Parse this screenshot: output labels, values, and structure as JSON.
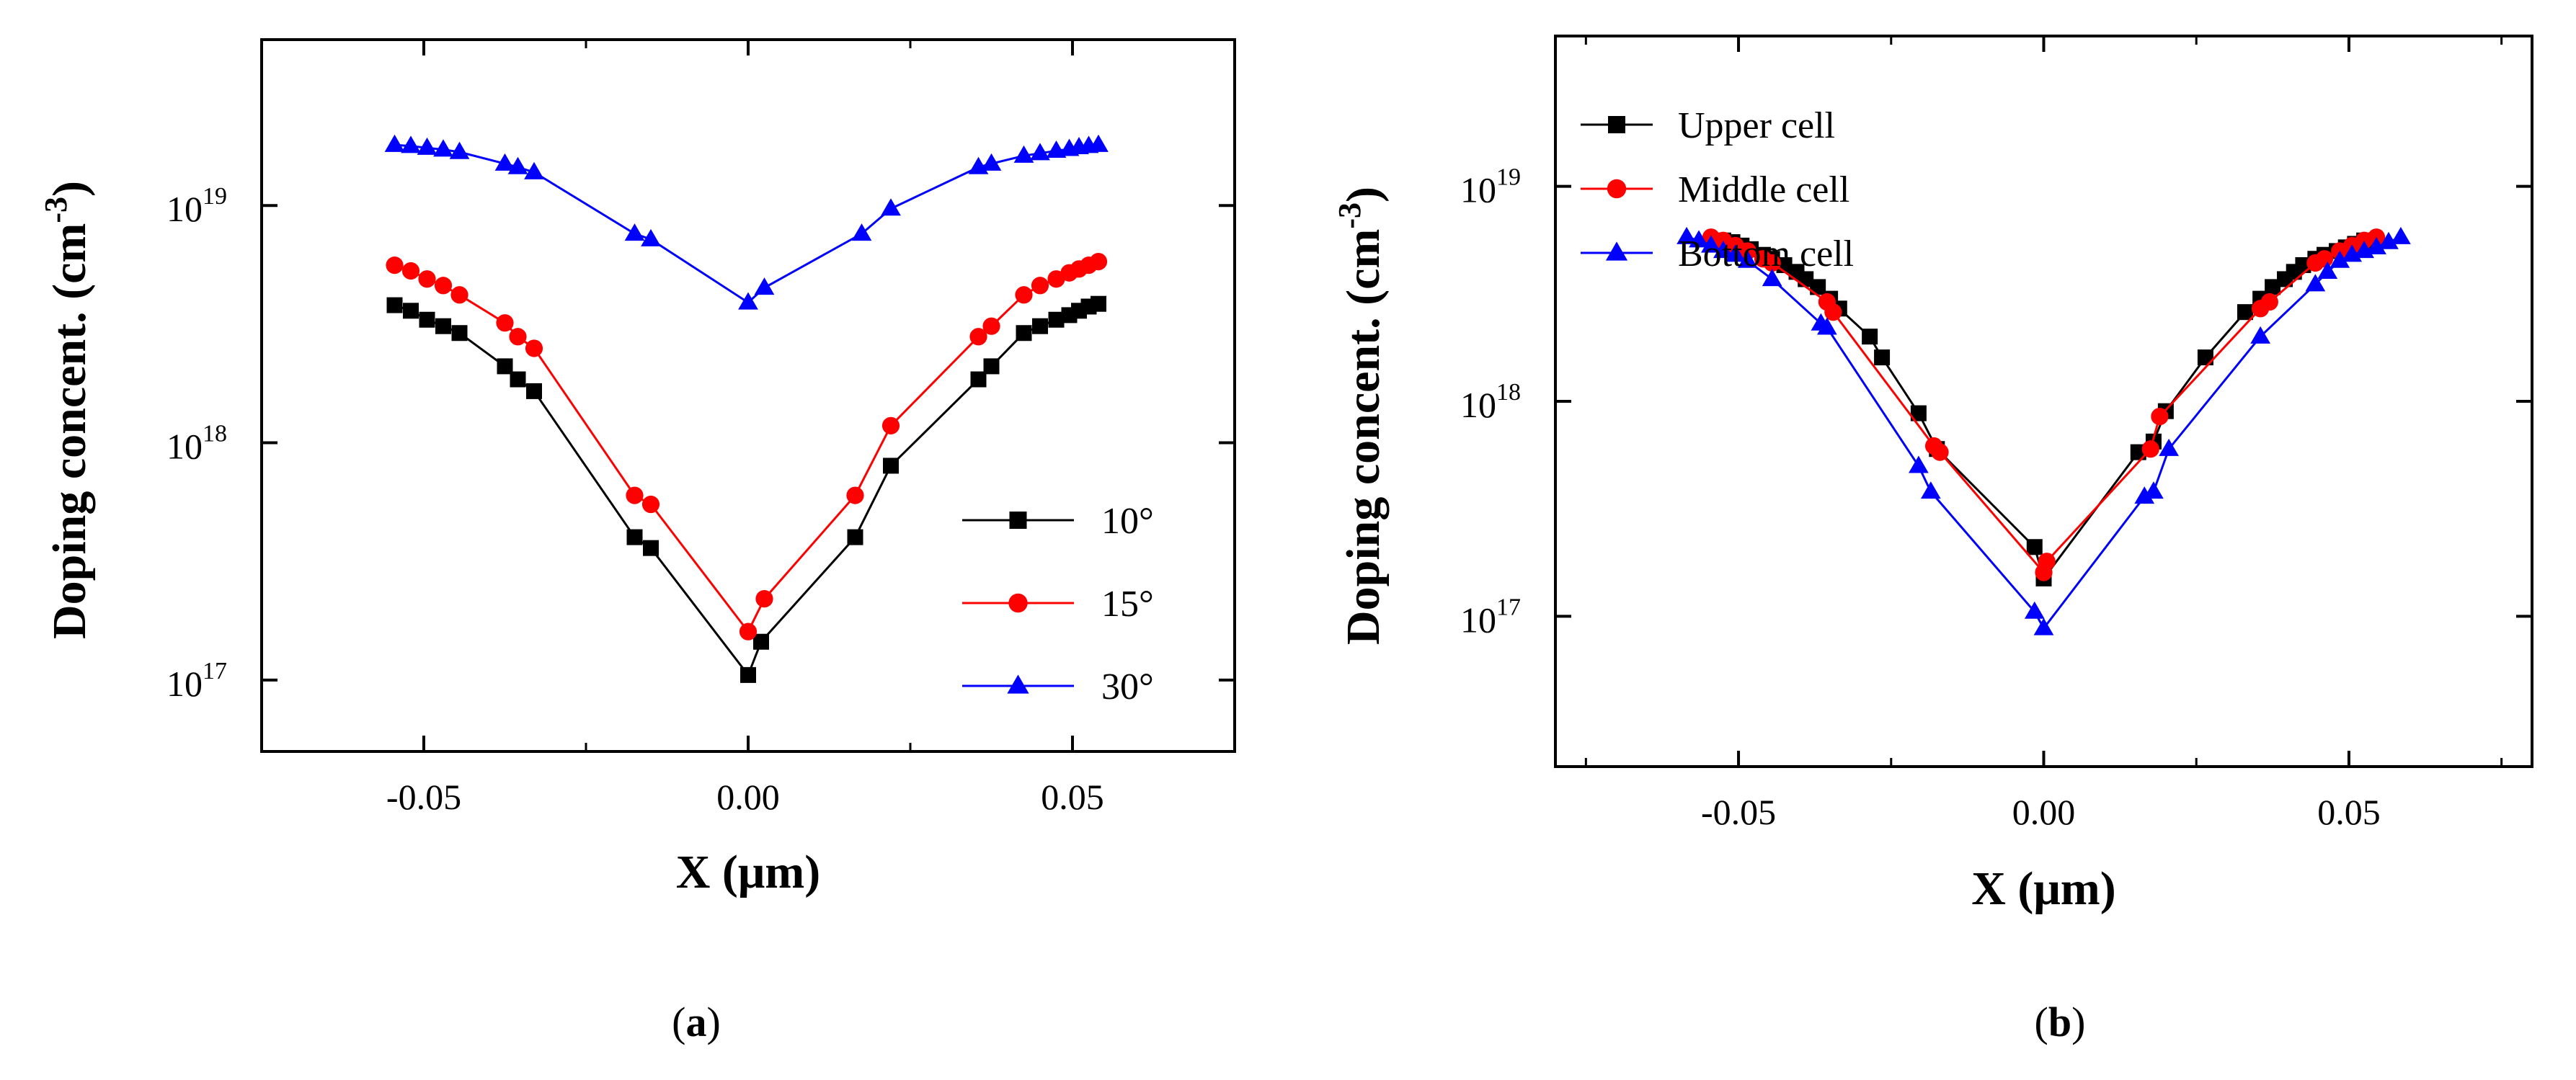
{
  "chart_data": [
    {
      "type": "line",
      "panel_label": [
        "(",
        "a",
        ")"
      ],
      "xlabel": "X (μm)",
      "ylabel": {
        "main": "Doping concent. (cm",
        "sup": "-3",
        "end": ")"
      },
      "xlim": [
        -0.075,
        0.075
      ],
      "ylim": [
        5e+16,
        5e+19
      ],
      "y_scale": "log",
      "x_ticks": [
        {
          "value": -0.05,
          "label": "-0.05"
        },
        {
          "value": 0,
          "label": "0.00"
        },
        {
          "value": 0.05,
          "label": "0.05"
        }
      ],
      "y_ticks": [
        {
          "value": 1e+17,
          "base": "10",
          "exp": "17"
        },
        {
          "value": 1e+18,
          "base": "10",
          "exp": "18"
        },
        {
          "value": 1e+19,
          "base": "10",
          "exp": "19"
        }
      ],
      "legend_position": "lower-right",
      "series": [
        {
          "name": "10°",
          "color": "#000000",
          "marker": "square",
          "x": [
            -0.0545,
            -0.052,
            -0.0495,
            -0.047,
            -0.0445,
            -0.0375,
            -0.0355,
            -0.033,
            -0.0175,
            -0.015,
            0,
            0.002,
            0.0165,
            0.022,
            0.0355,
            0.0375,
            0.0425,
            0.045,
            0.0475,
            0.0495,
            0.051,
            0.0525,
            0.054
          ],
          "y": [
            3.8e+18,
            3.6e+18,
            3.3e+18,
            3.1e+18,
            2.9e+18,
            2.1e+18,
            1.85e+18,
            1.65e+18,
            4e+17,
            3.6e+17,
            1.05e+17,
            1.45e+17,
            4e+17,
            8e+17,
            1.85e+18,
            2.1e+18,
            2.9e+18,
            3.1e+18,
            3.3e+18,
            3.45e+18,
            3.6e+18,
            3.75e+18,
            3.85e+18
          ]
        },
        {
          "name": "15°",
          "color": "#ff0000",
          "marker": "circle",
          "x": [
            -0.0545,
            -0.052,
            -0.0495,
            -0.047,
            -0.0445,
            -0.0375,
            -0.0355,
            -0.033,
            -0.0175,
            -0.015,
            0,
            0.0025,
            0.0165,
            0.022,
            0.0355,
            0.0375,
            0.0425,
            0.045,
            0.0475,
            0.0495,
            0.051,
            0.0525,
            0.054
          ],
          "y": [
            5.6e+18,
            5.3e+18,
            4.9e+18,
            4.6e+18,
            4.2e+18,
            3.2e+18,
            2.8e+18,
            2.5e+18,
            6e+17,
            5.5e+17,
            1.6e+17,
            2.2e+17,
            6e+17,
            1.18e+18,
            2.8e+18,
            3.1e+18,
            4.2e+18,
            4.6e+18,
            4.9e+18,
            5.2e+18,
            5.4e+18,
            5.6e+18,
            5.8e+18
          ]
        },
        {
          "name": "30°",
          "color": "#0000ff",
          "marker": "triangle",
          "x": [
            -0.0545,
            -0.052,
            -0.0495,
            -0.047,
            -0.0445,
            -0.0375,
            -0.0355,
            -0.033,
            -0.0175,
            -0.015,
            0,
            0.0025,
            0.0175,
            0.022,
            0.0355,
            0.0375,
            0.0425,
            0.045,
            0.0475,
            0.0495,
            0.051,
            0.0525,
            0.054
          ],
          "y": [
            1.8e+19,
            1.78e+19,
            1.75e+19,
            1.72e+19,
            1.68e+19,
            1.5e+19,
            1.45e+19,
            1.38e+19,
            7.6e+18,
            7.2e+18,
            3.9e+18,
            4.5e+18,
            7.6e+18,
            9.7e+18,
            1.45e+19,
            1.5e+19,
            1.62e+19,
            1.66e+19,
            1.7e+19,
            1.73e+19,
            1.76e+19,
            1.78e+19,
            1.8e+19
          ]
        }
      ]
    },
    {
      "type": "line",
      "panel_label": [
        "(",
        "b",
        ")"
      ],
      "xlabel": "X (μm)",
      "ylabel": {
        "main": "Doping concent. (cm",
        "sup": "-3",
        "end": ")"
      },
      "xlim": [
        -0.08,
        0.08
      ],
      "ylim": [
        2e+16,
        5e+19
      ],
      "y_scale": "log",
      "x_ticks": [
        {
          "value": -0.05,
          "label": "-0.05"
        },
        {
          "value": 0,
          "label": "0.00"
        },
        {
          "value": 0.05,
          "label": "0.05"
        }
      ],
      "y_ticks": [
        {
          "value": 1e+17,
          "base": "10",
          "exp": "17"
        },
        {
          "value": 1e+18,
          "base": "10",
          "exp": "18"
        },
        {
          "value": 1e+19,
          "base": "10",
          "exp": "19"
        }
      ],
      "legend_position": "top-left",
      "series": [
        {
          "name": "Upper cell",
          "color": "#000000",
          "marker": "square",
          "x": [
            -0.0525,
            -0.051,
            -0.0495,
            -0.048,
            -0.046,
            -0.0445,
            -0.0425,
            -0.0405,
            -0.039,
            -0.037,
            -0.035,
            -0.0335,
            -0.0285,
            -0.0265,
            -0.0205,
            -0.0175,
            -0.0015,
            0,
            0.0155,
            0.018,
            0.02,
            0.0265,
            0.033,
            0.0355,
            0.0375,
            0.0395,
            0.041,
            0.0425,
            0.0445,
            0.046,
            0.048,
            0.0495,
            0.051,
            0.0525
          ],
          "y": [
            5.6e+18,
            5.5e+18,
            5.3e+18,
            5.1e+18,
            4.8e+18,
            4.6e+18,
            4.3e+18,
            4e+18,
            3.7e+18,
            3.4e+18,
            3e+18,
            2.7e+18,
            2e+18,
            1.6e+18,
            8.8e+17,
            6e+17,
            2.1e+17,
            1.5e+17,
            5.8e+17,
            6.5e+17,
            9e+17,
            1.6e+18,
            2.6e+18,
            3e+18,
            3.4e+18,
            3.7e+18,
            4e+18,
            4.3e+18,
            4.6e+18,
            4.8e+18,
            5e+18,
            5.2e+18,
            5.4e+18,
            5.6e+18
          ]
        },
        {
          "name": "Middle cell",
          "color": "#ff0000",
          "marker": "circle",
          "x": [
            -0.0545,
            -0.0525,
            -0.0505,
            -0.0485,
            -0.046,
            -0.0445,
            -0.0355,
            -0.0345,
            -0.018,
            -0.017,
            0,
            0.0005,
            0.0175,
            0.019,
            0.0355,
            0.037,
            0.0445,
            0.046,
            0.0485,
            0.0505,
            0.0525,
            0.0545
          ],
          "y": [
            5.8e+18,
            5.6e+18,
            5.3e+18,
            5e+18,
            4.6e+18,
            4.4e+18,
            2.9e+18,
            2.6e+18,
            6.2e+17,
            5.8e+17,
            1.6e+17,
            1.8e+17,
            6e+17,
            8.5e+17,
            2.7e+18,
            2.9e+18,
            4.4e+18,
            4.6e+18,
            5e+18,
            5.3e+18,
            5.6e+18,
            5.8e+18
          ]
        },
        {
          "name": "Bottom cell",
          "color": "#0000ff",
          "marker": "triangle",
          "x": [
            -0.0585,
            -0.0565,
            -0.0545,
            -0.0525,
            -0.0505,
            -0.0485,
            -0.0445,
            -0.0365,
            -0.0355,
            -0.0205,
            -0.0185,
            -0.0015,
            0,
            0.0165,
            0.018,
            0.0205,
            0.0355,
            0.0445,
            0.0465,
            0.0485,
            0.0505,
            0.0525,
            0.0545,
            0.0565,
            0.0585
          ],
          "y": [
            5.8e+18,
            5.6e+18,
            5.3e+18,
            5e+18,
            4.8e+18,
            4.5e+18,
            3.7e+18,
            2.3e+18,
            2.2e+18,
            5e+17,
            3.8e+17,
            1.05e+17,
            8.8e+16,
            3.6e+17,
            3.8e+17,
            6e+17,
            2e+18,
            3.5e+18,
            4e+18,
            4.5e+18,
            4.8e+18,
            5e+18,
            5.2e+18,
            5.5e+18,
            5.8e+18
          ]
        }
      ]
    }
  ]
}
